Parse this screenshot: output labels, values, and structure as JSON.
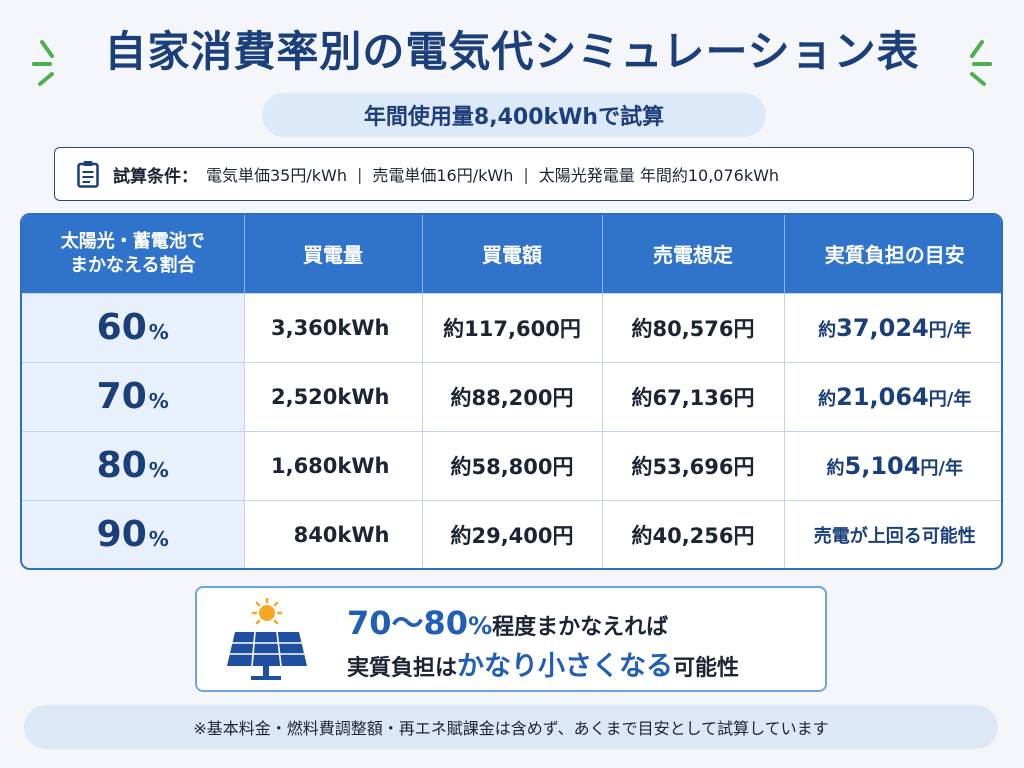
{
  "title": "自家消費率別の電気代シミュレーション表",
  "subtitle": "年間使用量8,400kWhで試算",
  "conditions": {
    "label": "試算条件：",
    "items": [
      "電気単価35円/kWh",
      "売電単価16円/kWh",
      "太陽光発電量 年間約10,076kWh"
    ],
    "separator": "|"
  },
  "table": {
    "headers": {
      "coverage_line1": "太陽光・蓄電池で",
      "coverage_line2": "まかなえる割合",
      "purchase_kwh": "買電量",
      "purchase_cost": "買電額",
      "sell_income": "売電想定",
      "burden": "実質負担の目安"
    },
    "rows": [
      {
        "pct": "60",
        "unit": "%",
        "kwh": "3,360kWh",
        "cost": "約117,600円",
        "sell": "約80,576円",
        "burden_pre": "約",
        "burden_amt": "37,024",
        "burden_unit": "円/年",
        "burden_note": ""
      },
      {
        "pct": "70",
        "unit": "%",
        "kwh": "2,520kWh",
        "cost": "約88,200円",
        "sell": "約67,136円",
        "burden_pre": "約",
        "burden_amt": "21,064",
        "burden_unit": "円/年",
        "burden_note": ""
      },
      {
        "pct": "80",
        "unit": "%",
        "kwh": "1,680kWh",
        "cost": "約58,800円",
        "sell": "約53,696円",
        "burden_pre": "約",
        "burden_amt": "5,104",
        "burden_unit": "円/年",
        "burden_note": ""
      },
      {
        "pct": "90",
        "unit": "%",
        "kwh": "840kWh",
        "cost": "約29,400円",
        "sell": "約40,256円",
        "burden_pre": "",
        "burden_amt": "",
        "burden_unit": "",
        "burden_note": "売電が上回る可能性"
      }
    ]
  },
  "highlight": {
    "line1_big": "70～80",
    "line1_pct": "%",
    "line1_rest": "程度まかなえれば",
    "line2_a": "実質負担は",
    "line2_b": "かなり小さくなる",
    "line2_c": "可能性"
  },
  "footnote": "※基本料金・燃料費調整額・再エネ賦課金は含めず、あくまで目安として試算しています",
  "colors": {
    "accent": "#2f73cb",
    "title": "#1b3f7a",
    "spark": "#4caf50"
  },
  "icons": [
    "sparkle-icon",
    "clipboard-icon",
    "solar-panel-icon",
    "sun-icon"
  ]
}
